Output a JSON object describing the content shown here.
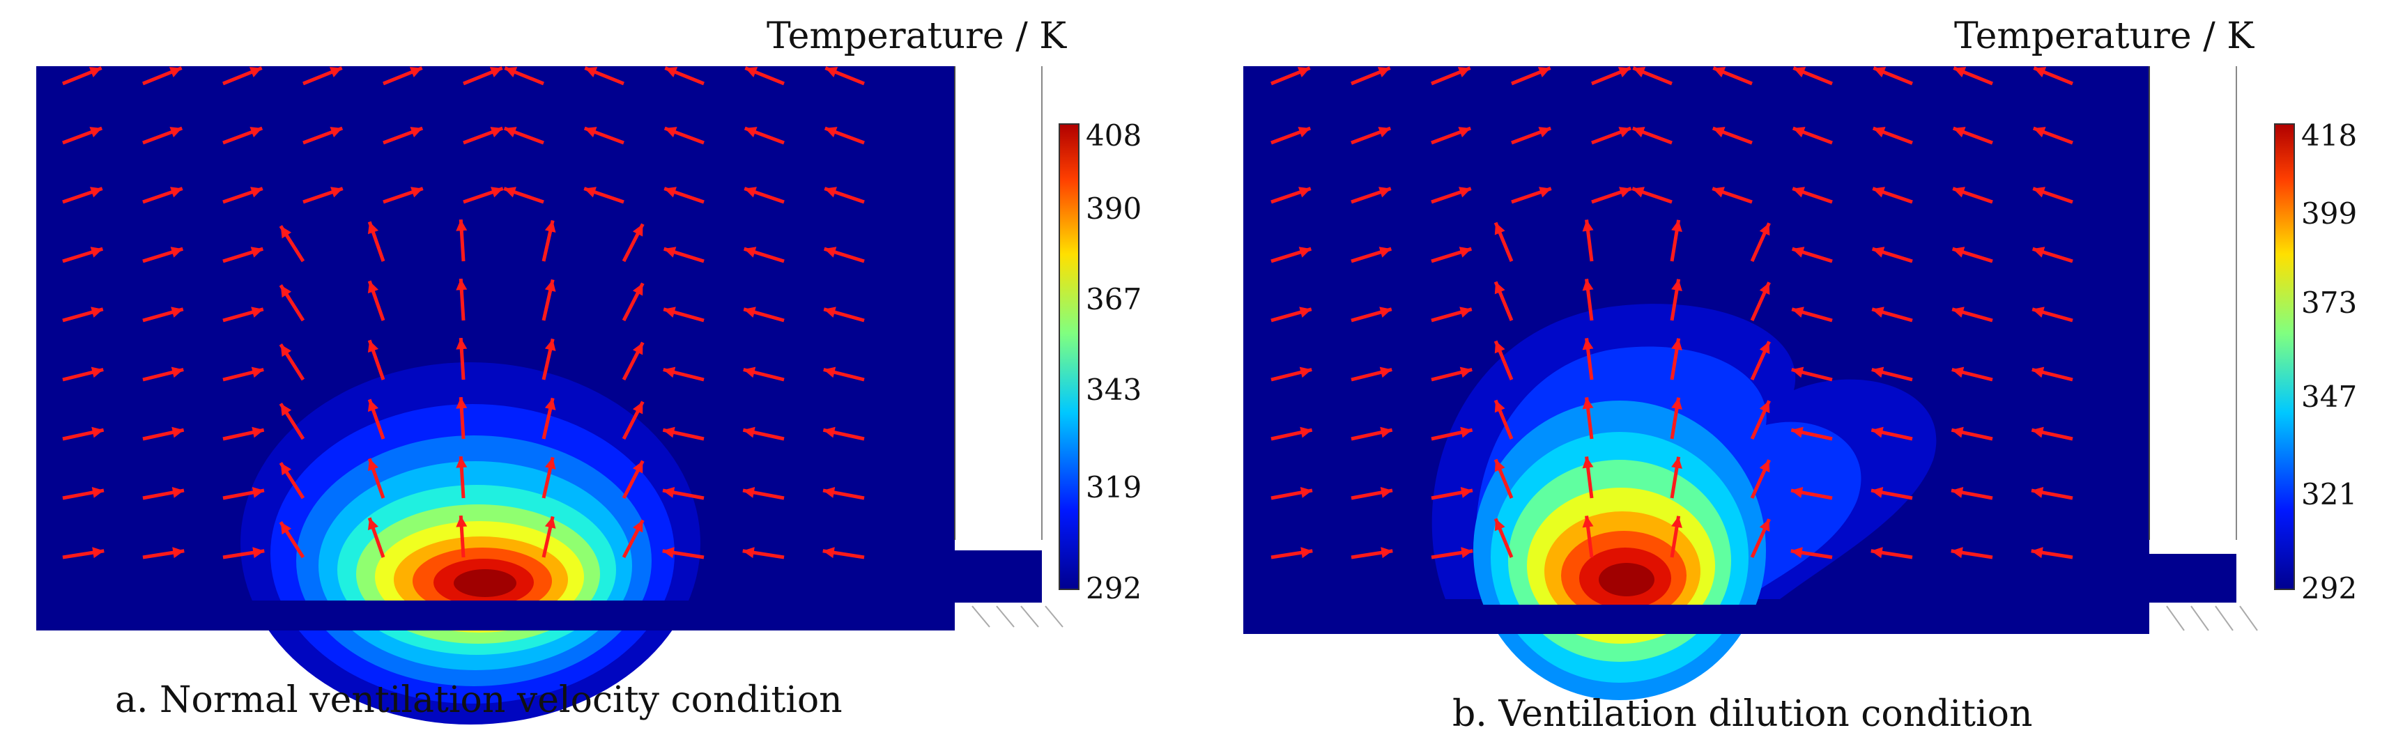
{
  "figure": {
    "panels": [
      {
        "caption": "a. Normal ventilation velocity condition",
        "colorbar": {
          "title": "Temperature / K",
          "ticks": [
            "408",
            "390",
            "367",
            "343",
            "319",
            "292"
          ],
          "max": 408,
          "min": 292
        }
      },
      {
        "caption": "b. Ventilation dilution condition",
        "colorbar": {
          "title": "Temperature / K",
          "ticks": [
            "418",
            "399",
            "373",
            "347",
            "321",
            "292"
          ],
          "max": 418,
          "min": 292
        }
      }
    ],
    "colors": {
      "background_field": "#00008f",
      "arrow": "#ff1a1a",
      "colormap": [
        "#00008f",
        "#0018ff",
        "#00c8ff",
        "#80ff80",
        "#ffe000",
        "#ff4000",
        "#b00000"
      ]
    }
  }
}
